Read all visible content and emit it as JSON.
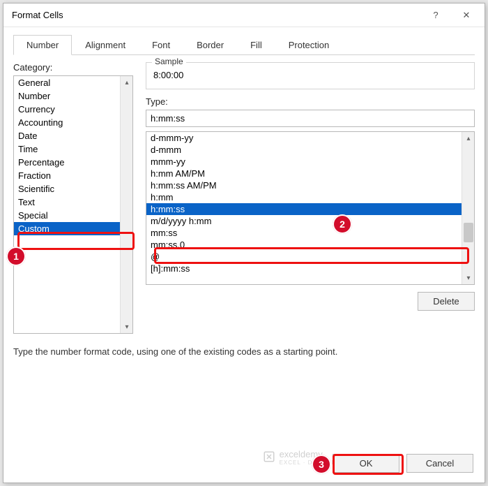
{
  "dialog": {
    "title": "Format Cells",
    "help_glyph": "?",
    "close_glyph": "✕"
  },
  "tabs": {
    "items": [
      {
        "label": "Number",
        "active": true
      },
      {
        "label": "Alignment",
        "active": false
      },
      {
        "label": "Font",
        "active": false
      },
      {
        "label": "Border",
        "active": false
      },
      {
        "label": "Fill",
        "active": false
      },
      {
        "label": "Protection",
        "active": false
      }
    ]
  },
  "category": {
    "label": "Category:",
    "items": [
      {
        "label": "General",
        "selected": false
      },
      {
        "label": "Number",
        "selected": false
      },
      {
        "label": "Currency",
        "selected": false
      },
      {
        "label": "Accounting",
        "selected": false
      },
      {
        "label": "Date",
        "selected": false
      },
      {
        "label": "Time",
        "selected": false
      },
      {
        "label": "Percentage",
        "selected": false
      },
      {
        "label": "Fraction",
        "selected": false
      },
      {
        "label": "Scientific",
        "selected": false
      },
      {
        "label": "Text",
        "selected": false
      },
      {
        "label": "Special",
        "selected": false
      },
      {
        "label": "Custom",
        "selected": true
      }
    ]
  },
  "sample": {
    "legend": "Sample",
    "value": "8:00:00"
  },
  "type": {
    "label": "Type:",
    "input_value": "h:mm:ss",
    "items": [
      {
        "label": "d-mmm-yy",
        "selected": false
      },
      {
        "label": "d-mmm",
        "selected": false
      },
      {
        "label": "mmm-yy",
        "selected": false
      },
      {
        "label": "h:mm AM/PM",
        "selected": false
      },
      {
        "label": "h:mm:ss AM/PM",
        "selected": false
      },
      {
        "label": "h:mm",
        "selected": false
      },
      {
        "label": "h:mm:ss",
        "selected": true
      },
      {
        "label": "m/d/yyyy h:mm",
        "selected": false
      },
      {
        "label": "mm:ss",
        "selected": false
      },
      {
        "label": "mm:ss.0",
        "selected": false
      },
      {
        "label": "@",
        "selected": false
      },
      {
        "label": "[h]:mm:ss",
        "selected": false
      }
    ]
  },
  "buttons": {
    "delete": "Delete",
    "ok": "OK",
    "cancel": "Cancel"
  },
  "hint": "Type the number format code, using one of the existing codes as a starting point.",
  "watermark": {
    "brand": "exceldemy",
    "sub": "EXCEL · DATA · BI"
  },
  "annotations": {
    "circles": [
      "1",
      "2",
      "3"
    ],
    "highlight_color": "#e11",
    "selection_color": "#0a63c7"
  }
}
